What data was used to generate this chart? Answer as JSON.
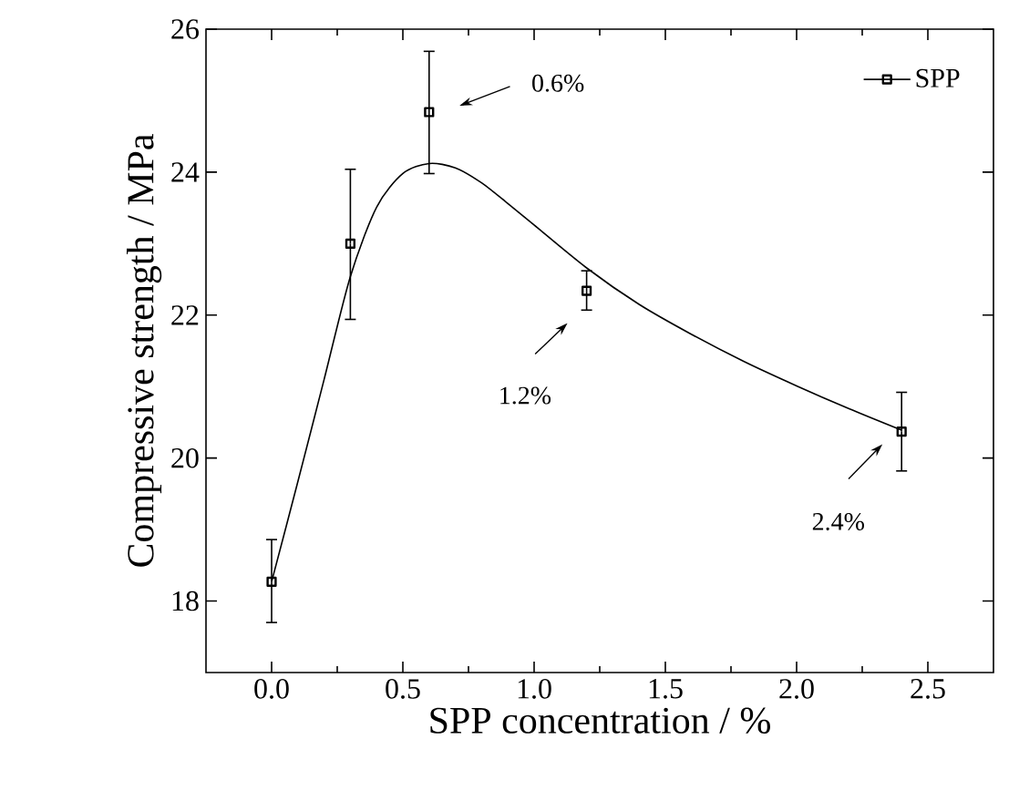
{
  "chart_data": {
    "type": "scatter",
    "xlabel": "SPP concentration / %",
    "ylabel": "Compressive strength / MPa",
    "xlim": [
      -0.25,
      2.75
    ],
    "ylim": [
      17,
      26
    ],
    "xticks": [
      {
        "value": 0,
        "label": "0.0"
      },
      {
        "value": 0.5,
        "label": "0.5"
      },
      {
        "value": 1,
        "label": "1.0"
      },
      {
        "value": 1.5,
        "label": "1.5"
      },
      {
        "value": 2,
        "label": "2.0"
      },
      {
        "value": 2.5,
        "label": "2.5"
      }
    ],
    "yticks": [
      18,
      20,
      22,
      24,
      26
    ],
    "legend": "top right",
    "grid": false,
    "series": [
      {
        "name": "SPP",
        "color": "#000000",
        "marker": "square",
        "x": [
          0,
          0.3,
          0.6,
          1.2,
          2.4
        ],
        "values": [
          18.27,
          23.0,
          24.84,
          22.34,
          20.37
        ],
        "errors": [
          [
            17.7,
            18.86
          ],
          [
            21.94,
            24.04
          ],
          [
            23.98,
            25.69
          ],
          [
            22.07,
            22.62
          ],
          [
            19.82,
            20.92
          ]
        ]
      },
      {
        "type": "line",
        "color": "#000000",
        "marker": "none",
        "line_style": "solid",
        "x": [
          0,
          0.1,
          0.2,
          0.3,
          0.4,
          0.5,
          0.6,
          0.7,
          0.8,
          0.9,
          1.0,
          1.2,
          1.4,
          1.6,
          1.8,
          2.0,
          2.2,
          2.4
        ],
        "values": [
          18.27,
          19.67,
          21.1,
          22.54,
          23.51,
          23.98,
          24.12,
          24.06,
          23.85,
          23.56,
          23.26,
          22.66,
          22.15,
          21.73,
          21.35,
          21.01,
          20.69,
          20.39
        ]
      }
    ],
    "annotations": [
      "0.6%",
      "1.2%",
      "2.4%"
    ]
  }
}
